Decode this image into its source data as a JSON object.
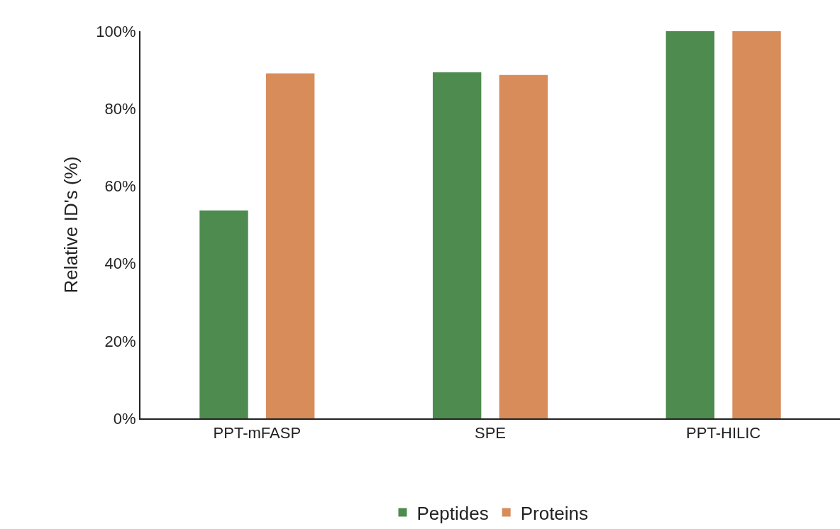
{
  "chart_data": {
    "type": "bar",
    "ylabel": "Relative ID's (%)",
    "categories": [
      "PPT-mFASP",
      "SPE",
      "PPT-HILIC"
    ],
    "series": [
      {
        "name": "Peptides",
        "color": "#4e8b4e",
        "values": [
          53.7,
          89.4,
          100
        ]
      },
      {
        "name": "Proteins",
        "color": "#d88c5a",
        "values": [
          89.1,
          88.7,
          100
        ]
      }
    ],
    "ylim": [
      0,
      100
    ],
    "yticks": [
      {
        "value": 0,
        "label": "0%"
      },
      {
        "value": 20,
        "label": "20%"
      },
      {
        "value": 40,
        "label": "40%"
      },
      {
        "value": 60,
        "label": "60%"
      },
      {
        "value": 80,
        "label": "80%"
      },
      {
        "value": 100,
        "label": "100%"
      }
    ],
    "grid": false,
    "legend": "bottom"
  }
}
